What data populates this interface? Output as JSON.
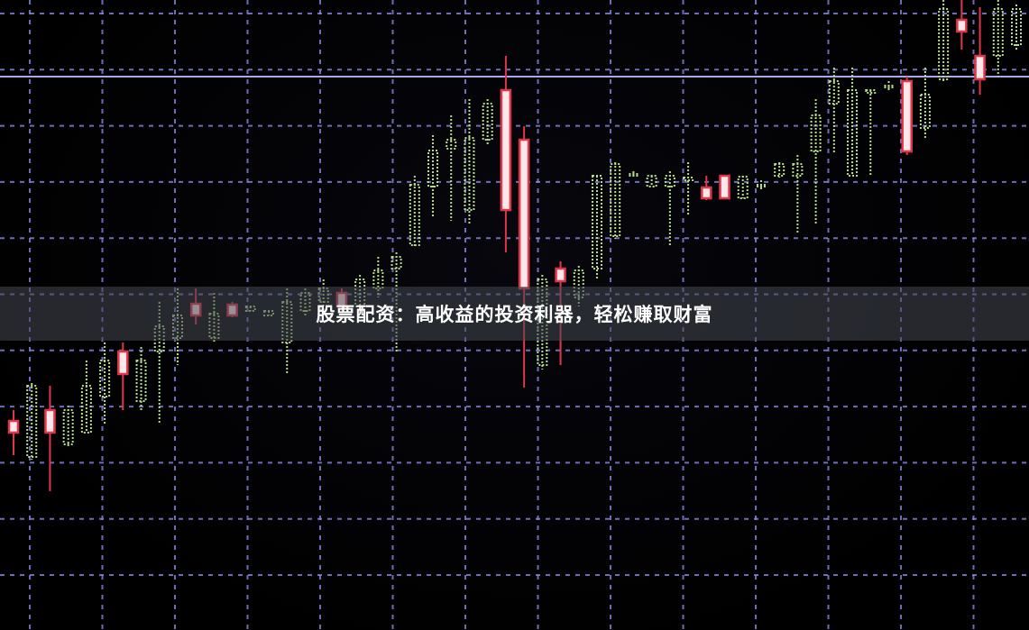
{
  "caption": "股票配资：高收益的投资利器，轻松赚取财富",
  "colors": {
    "background": "#000000",
    "grid": "#8a8ae6",
    "up": "#b7dc86",
    "down": "#e0364a",
    "down_body": "#ffe6ea",
    "level_line": "#a9a9e8"
  },
  "chart_data": {
    "type": "candlestick",
    "title": "",
    "xlabel": "",
    "ylabel": "",
    "grid": true,
    "ylim": [
      0,
      70
    ],
    "level_line": 61.2,
    "candles": [
      {
        "body_high": 23.3,
        "body_low": 22.0,
        "high": 24.5,
        "low": 19.5,
        "color": "red"
      },
      {
        "body_high": 27.2,
        "body_low": 19.3,
        "high": 27.5,
        "low": 19.0,
        "color": "green"
      },
      {
        "body_high": 24.5,
        "body_low": 22.0,
        "high": 27.2,
        "low": 15.5,
        "color": "red"
      },
      {
        "body_high": 24.5,
        "body_low": 20.7,
        "high": 25.0,
        "low": 20.5,
        "color": "green"
      },
      {
        "body_high": 27.2,
        "body_low": 22.0,
        "high": 30.0,
        "low": 22.0,
        "color": "green"
      },
      {
        "body_high": 30.0,
        "body_low": 26.0,
        "high": 32.0,
        "low": 23.0,
        "color": "green"
      },
      {
        "body_high": 31.0,
        "body_low": 28.5,
        "high": 32.0,
        "low": 24.5,
        "color": "red"
      },
      {
        "body_high": 30.0,
        "body_low": 25.5,
        "high": 31.5,
        "low": 24.5,
        "color": "green"
      },
      {
        "body_high": 33.8,
        "body_low": 31.0,
        "high": 36.5,
        "low": 23.0,
        "color": "green"
      },
      {
        "body_high": 35.0,
        "body_low": 32.5,
        "high": 38.0,
        "low": 29.5,
        "color": "green"
      },
      {
        "body_high": 36.3,
        "body_low": 35.0,
        "high": 38.0,
        "low": 34.0,
        "color": "red"
      },
      {
        "body_high": 35.2,
        "body_low": 32.5,
        "high": 37.5,
        "low": 32.0,
        "color": "green"
      },
      {
        "body_high": 36.2,
        "body_low": 35.0,
        "high": 36.5,
        "low": 34.8,
        "color": "red"
      },
      {
        "body_high": 36.0,
        "body_low": 35.5,
        "high": 36.0,
        "low": 35.5,
        "color": "green"
      },
      {
        "body_high": 35.5,
        "body_low": 35.0,
        "high": 35.5,
        "low": 35.0,
        "color": "green"
      },
      {
        "body_high": 36.5,
        "body_low": 32.0,
        "high": 38.0,
        "low": 28.5,
        "color": "green"
      },
      {
        "body_high": 37.5,
        "body_low": 35.5,
        "high": 38.0,
        "low": 35.0,
        "color": "green"
      },
      {
        "body_high": 38.0,
        "body_low": 36.5,
        "high": 39.0,
        "low": 35.5,
        "color": "green"
      },
      {
        "body_high": 37.5,
        "body_low": 36.0,
        "high": 38.0,
        "low": 35.5,
        "color": "red"
      },
      {
        "body_high": 39.0,
        "body_low": 36.0,
        "high": 39.5,
        "low": 35.5,
        "color": "green"
      },
      {
        "body_high": 40.0,
        "body_low": 38.0,
        "high": 41.5,
        "low": 37.0,
        "color": "green"
      },
      {
        "body_high": 41.5,
        "body_low": 40.2,
        "high": 42.0,
        "low": 31.0,
        "color": "green"
      },
      {
        "body_high": 49.5,
        "body_low": 42.8,
        "high": 50.5,
        "low": 42.5,
        "color": "green"
      },
      {
        "body_high": 53.3,
        "body_low": 49.3,
        "high": 55.0,
        "low": 46.0,
        "color": "green"
      },
      {
        "body_high": 54.5,
        "body_low": 53.5,
        "high": 57.2,
        "low": 45.5,
        "color": "green"
      },
      {
        "body_high": 54.7,
        "body_low": 46.7,
        "high": 59.0,
        "low": 45.0,
        "color": "green"
      },
      {
        "body_high": 58.5,
        "body_low": 54.5,
        "high": 59.0,
        "low": 54.0,
        "color": "green"
      },
      {
        "body_high": 60.0,
        "body_low": 46.7,
        "high": 63.8,
        "low": 42.0,
        "color": "red"
      },
      {
        "body_high": 54.5,
        "body_low": 38.0,
        "high": 56.0,
        "low": 27.0,
        "color": "red"
      },
      {
        "body_high": 39.0,
        "body_low": 29.5,
        "high": 39.5,
        "low": 29.0,
        "color": "green"
      },
      {
        "body_high": 40.2,
        "body_low": 38.8,
        "high": 41.0,
        "low": 29.5,
        "color": "red"
      },
      {
        "body_high": 40.0,
        "body_low": 37.0,
        "high": 40.5,
        "low": 36.0,
        "color": "green"
      },
      {
        "body_high": 50.5,
        "body_low": 40.2,
        "high": 50.5,
        "low": 39.0,
        "color": "green"
      },
      {
        "body_high": 51.8,
        "body_low": 43.8,
        "high": 52.0,
        "low": 43.5,
        "color": "green"
      },
      {
        "body_high": 50.7,
        "body_low": 50.5,
        "high": 51.0,
        "low": 50.3,
        "color": "green"
      },
      {
        "body_high": 50.5,
        "body_low": 49.3,
        "high": 50.5,
        "low": 49.3,
        "color": "green"
      },
      {
        "body_high": 50.5,
        "body_low": 49.3,
        "high": 51.0,
        "low": 42.8,
        "color": "green"
      },
      {
        "body_high": 50.3,
        "body_low": 50.0,
        "high": 52.0,
        "low": 46.0,
        "color": "green"
      },
      {
        "body_high": 49.2,
        "body_low": 48.0,
        "high": 50.5,
        "low": 47.8,
        "color": "red"
      },
      {
        "body_high": 50.5,
        "body_low": 48.0,
        "high": 50.5,
        "low": 48.0,
        "color": "red"
      },
      {
        "body_high": 50.4,
        "body_low": 48.0,
        "high": 50.5,
        "low": 48.0,
        "color": "green"
      },
      {
        "body_high": 49.5,
        "body_low": 49.3,
        "high": 50.0,
        "low": 49.0,
        "color": "green"
      },
      {
        "body_high": 51.8,
        "body_low": 50.5,
        "high": 52.0,
        "low": 50.3,
        "color": "green"
      },
      {
        "body_high": 51.8,
        "body_low": 50.5,
        "high": 52.8,
        "low": 44.0,
        "color": "green"
      },
      {
        "body_high": 57.2,
        "body_low": 53.2,
        "high": 59.0,
        "low": 45.0,
        "color": "green"
      },
      {
        "body_high": 61.0,
        "body_low": 58.5,
        "high": 62.5,
        "low": 53.0,
        "color": "green"
      },
      {
        "body_high": 60.0,
        "body_low": 50.5,
        "high": 62.5,
        "low": 50.5,
        "color": "green"
      },
      {
        "body_high": 60.0,
        "body_low": 59.7,
        "high": 60.0,
        "low": 50.5,
        "color": "green"
      },
      {
        "body_high": 60.5,
        "body_low": 60.3,
        "high": 61.0,
        "low": 60.0,
        "color": "green"
      },
      {
        "body_high": 61.0,
        "body_low": 53.2,
        "high": 61.5,
        "low": 52.8,
        "color": "red"
      },
      {
        "body_high": 59.5,
        "body_low": 55.8,
        "high": 62.5,
        "low": 54.5,
        "color": "green"
      },
      {
        "body_high": 69.0,
        "body_low": 61.2,
        "high": 70.0,
        "low": 61.0,
        "color": "green"
      },
      {
        "body_high": 67.8,
        "body_low": 66.5,
        "high": 70.0,
        "low": 64.5,
        "color": "red"
      },
      {
        "body_high": 63.8,
        "body_low": 61.2,
        "high": 69.2,
        "low": 59.5,
        "color": "red"
      },
      {
        "body_high": 69.0,
        "body_low": 63.8,
        "high": 70.0,
        "low": 61.5,
        "color": "green"
      },
      {
        "body_high": 69.0,
        "body_low": 65.0,
        "high": 69.5,
        "low": 64.5,
        "color": "green"
      }
    ]
  }
}
